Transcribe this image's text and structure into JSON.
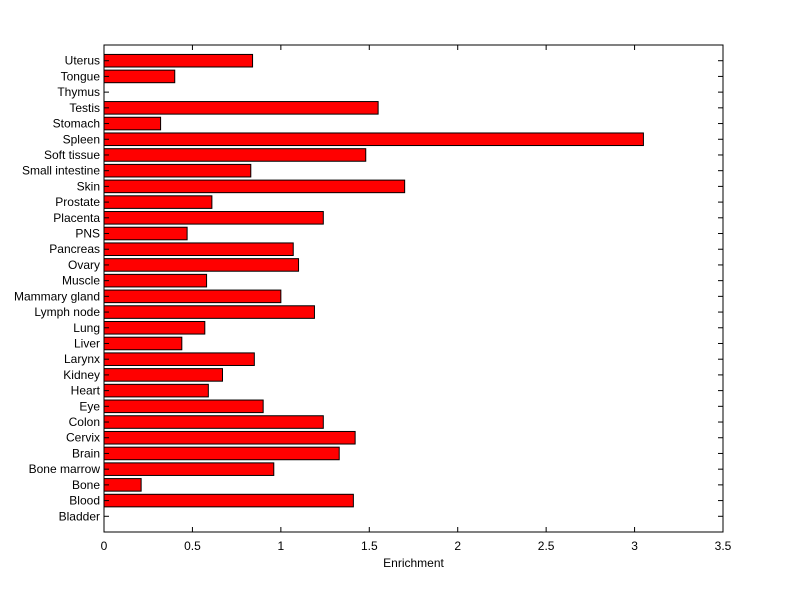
{
  "chart_data": {
    "type": "bar",
    "orientation": "horizontal",
    "title": "",
    "xlabel": "Enrichment",
    "ylabel": "",
    "xlim": [
      0,
      3.5
    ],
    "xticks": [
      "0",
      "0.5",
      "1",
      "1.5",
      "2",
      "2.5",
      "3",
      "3.5"
    ],
    "grid": false,
    "legend": "none",
    "bar_color": "#ff0000",
    "bar_edge_color": "#000000",
    "categories": [
      "Bladder",
      "Blood",
      "Bone",
      "Bone marrow",
      "Brain",
      "Cervix",
      "Colon",
      "Eye",
      "Heart",
      "Kidney",
      "Larynx",
      "Liver",
      "Lung",
      "Lymph node",
      "Mammary gland",
      "Muscle",
      "Ovary",
      "Pancreas",
      "PNS",
      "Placenta",
      "Prostate",
      "Skin",
      "Small intestine",
      "Soft tissue",
      "Spleen",
      "Stomach",
      "Testis",
      "Thymus",
      "Tongue",
      "Uterus"
    ],
    "values": [
      0,
      1.41,
      0.21,
      0.96,
      1.33,
      1.42,
      1.24,
      0.9,
      0.59,
      0.67,
      0.85,
      0.44,
      0.57,
      1.19,
      1.0,
      0.58,
      1.1,
      1.07,
      0.47,
      1.24,
      0.61,
      1.7,
      0.83,
      1.48,
      3.05,
      0.32,
      1.55,
      0,
      0.4,
      0.84
    ]
  }
}
